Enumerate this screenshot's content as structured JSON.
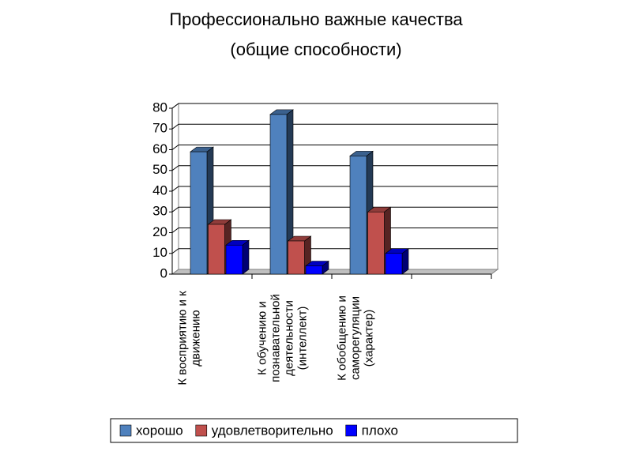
{
  "chart_data": {
    "type": "bar3d",
    "title": "Профессионально важные качества",
    "subtitle": "(общие способности)",
    "categories": [
      "К восприятию и к движению",
      "К обучению и познавательной деятельности (интеллект)",
      "К обобщению и саморегуляции (характер)",
      null
    ],
    "series": [
      {
        "name": "хорошо",
        "color": "#4f81bd",
        "values": [
          59,
          77,
          57,
          null
        ]
      },
      {
        "name": "удовлетворительно",
        "color": "#c0504d",
        "values": [
          24,
          16,
          30,
          null
        ]
      },
      {
        "name": "плохо",
        "color": "#0000ff",
        "values": [
          14,
          4,
          10,
          null
        ]
      }
    ],
    "ylim": [
      0,
      80
    ],
    "yticks": [
      0,
      10,
      20,
      30,
      40,
      50,
      60,
      70,
      80
    ],
    "grid": true,
    "legend": "bottom"
  }
}
